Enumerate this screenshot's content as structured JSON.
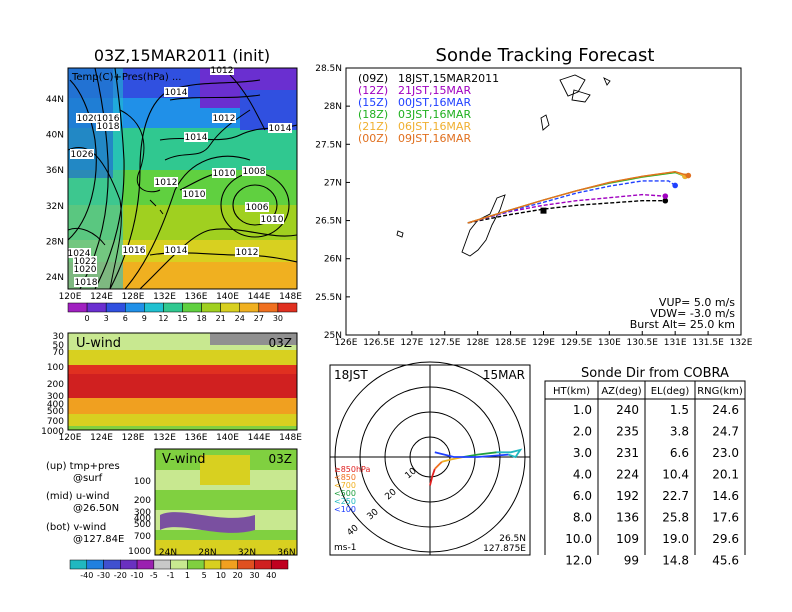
{
  "left_panel": {
    "title": "03Z,15MAR2011  (init)",
    "map_label": "Temp(C)+Pres(hPa) ...",
    "lat_ticks": [
      "44N",
      "40N",
      "36N",
      "32N",
      "28N",
      "24N"
    ],
    "lon_ticks": [
      "120E",
      "124E",
      "128E",
      "132E",
      "136E",
      "140E",
      "144E",
      "148E"
    ],
    "pressure_labels": [
      "1012",
      "1014",
      "1020",
      "1016",
      "1018",
      "1014",
      "1012",
      "1014",
      "1026",
      "1012",
      "1010",
      "1008",
      "1010",
      "1006",
      "1010",
      "1014",
      "1016",
      "1012",
      "1024",
      "1022",
      "1020",
      "1018"
    ],
    "temp_colorbar": {
      "labels": [
        "0",
        "3",
        "6",
        "9",
        "12",
        "15",
        "18",
        "21",
        "24",
        "27",
        "30"
      ],
      "colors": [
        "#a020c0",
        "#6a2fd0",
        "#3050e0",
        "#2090e8",
        "#20c0d0",
        "#30c890",
        "#60d040",
        "#a0d020",
        "#d8d020",
        "#f0b020",
        "#f07020",
        "#e03020"
      ]
    },
    "uwind": {
      "label": "U-wind",
      "time": "03Z",
      "y_ticks": [
        "30",
        "50",
        "70",
        "100",
        "200",
        "300",
        "400",
        "500",
        "700",
        "1000"
      ],
      "x_ticks": [
        "120E",
        "124E",
        "128E",
        "132E",
        "136E",
        "140E",
        "144E",
        "148E"
      ]
    },
    "vwind": {
      "label": "V-wind",
      "time": "03Z",
      "y_ticks": [
        "100",
        "200",
        "300",
        "400",
        "500",
        "700",
        "1000"
      ],
      "x_ticks": [
        "24N",
        "28N",
        "32N",
        "36N"
      ]
    },
    "notes": [
      "(up) tmp+pres",
      "@surf",
      "(mid) u-wind",
      "@26.50N",
      "(bot) v-wind",
      "@127.84E"
    ],
    "wind_colorbar": {
      "labels": [
        "-40",
        "-30",
        "-20",
        "-10",
        "-5",
        "-1",
        "1",
        "5",
        "10",
        "20",
        "30",
        "40"
      ],
      "colors": [
        "#20b8c0",
        "#2080e0",
        "#4050d0",
        "#6a30c0",
        "#9a20b0",
        "#c8c8c8",
        "#c8e890",
        "#80d040",
        "#d8d020",
        "#f0a020",
        "#e05020",
        "#d02020",
        "#c00020"
      ]
    }
  },
  "tracking": {
    "title": "Sonde Tracking Forecast",
    "lat_ticks": [
      "28.5N",
      "28N",
      "27.5N",
      "27N",
      "26.5N",
      "26N",
      "25.5N",
      "25N"
    ],
    "lon_ticks": [
      "126E",
      "126.5E",
      "127E",
      "127.5E",
      "128E",
      "128.5E",
      "129E",
      "129.5E",
      "130E",
      "130.5E",
      "131E",
      "131.5E",
      "132E"
    ],
    "legend": [
      {
        "code": "(09Z)",
        "label": "18JST,15MAR2011",
        "color": "#000000"
      },
      {
        "code": "(12Z)",
        "label": "21JST,15MAR",
        "color": "#a000c0"
      },
      {
        "code": "(15Z)",
        "label": "00JST,16MAR",
        "color": "#2040ff"
      },
      {
        "code": "(18Z)",
        "label": "03JST,16MAR",
        "color": "#20b020"
      },
      {
        "code": "(21Z)",
        "label": "06JST,16MAR",
        "color": "#f0b030"
      },
      {
        "code": "(00Z)",
        "label": "09JST,16MAR",
        "color": "#e07020"
      }
    ],
    "params": [
      "VUP=  5.0  m/s",
      "VDW=  -3.0  m/s",
      "Burst Alt=  25.0  km"
    ]
  },
  "polar": {
    "time_label": "18JST",
    "date_label": "15MAR",
    "ring_labels": [
      "10",
      "20",
      "30",
      "40"
    ],
    "pressure_legend": [
      {
        "label": "≥850hPa",
        "color": "#e02020"
      },
      {
        "label": "<850",
        "color": "#f07020"
      },
      {
        "label": "<700",
        "color": "#f0b020"
      },
      {
        "label": "<500",
        "color": "#20a040"
      },
      {
        "label": "<250",
        "color": "#20b8c0"
      },
      {
        "label": "<100",
        "color": "#2040ff"
      }
    ],
    "unit": "ms-1",
    "loc_lat": "26.5N",
    "loc_lon": "127.875E"
  },
  "sonde_table": {
    "title": "Sonde Dir from COBRA",
    "headers": [
      "HT(km)",
      "AZ(deg)",
      "EL(deg)",
      "RNG(km)"
    ],
    "rows": [
      [
        "1.0",
        "240",
        "1.5",
        "24.6"
      ],
      [
        "2.0",
        "235",
        "3.8",
        "24.7"
      ],
      [
        "3.0",
        "231",
        "6.6",
        "23.0"
      ],
      [
        "4.0",
        "224",
        "10.4",
        "20.1"
      ],
      [
        "6.0",
        "192",
        "22.7",
        "14.6"
      ],
      [
        "8.0",
        "136",
        "25.8",
        "17.6"
      ],
      [
        "10.0",
        "109",
        "19.0",
        "29.6"
      ],
      [
        "12.0",
        "99",
        "14.8",
        "45.6"
      ]
    ]
  },
  "chart_data": [
    {
      "type": "line",
      "title": "Sonde Tracking Forecast",
      "xlim": [
        126,
        132
      ],
      "ylim": [
        25,
        28.5
      ],
      "series": [
        {
          "name": "18JST,15MAR2011",
          "x": [
            127.85,
            128.5,
            129.0,
            129.5,
            130.0,
            130.5,
            130.85
          ],
          "y": [
            26.47,
            26.58,
            26.65,
            26.7,
            26.73,
            26.76,
            26.76
          ]
        },
        {
          "name": "21JST,15MAR",
          "x": [
            127.85,
            128.5,
            129.0,
            129.5,
            130.0,
            130.5,
            130.85
          ],
          "y": [
            26.47,
            26.62,
            26.7,
            26.76,
            26.8,
            26.84,
            26.82
          ]
        },
        {
          "name": "00JST,16MAR",
          "x": [
            127.85,
            128.5,
            129.0,
            129.5,
            130.0,
            130.5,
            130.9,
            131.0
          ],
          "y": [
            26.47,
            26.63,
            26.74,
            26.86,
            26.95,
            27.02,
            27.02,
            26.96
          ]
        },
        {
          "name": "03JST,16MAR",
          "x": [
            127.85,
            128.5,
            129.0,
            129.5,
            130.0,
            130.5,
            131.0,
            131.15
          ],
          "y": [
            26.47,
            26.64,
            26.77,
            26.89,
            26.99,
            27.07,
            27.13,
            27.08
          ]
        },
        {
          "name": "06JST,16MAR",
          "x": [
            127.85,
            128.5,
            129.0,
            129.5,
            130.0,
            130.5,
            131.0,
            131.15
          ],
          "y": [
            26.47,
            26.64,
            26.77,
            26.89,
            27.0,
            27.08,
            27.14,
            27.08
          ]
        },
        {
          "name": "09JST,16MAR",
          "x": [
            127.85,
            128.5,
            129.0,
            129.5,
            130.0,
            130.5,
            131.0,
            131.2
          ],
          "y": [
            26.47,
            26.64,
            26.77,
            26.89,
            27.0,
            27.08,
            27.14,
            27.09
          ]
        }
      ]
    },
    {
      "type": "line",
      "title": "",
      "xlim": [
        -40,
        40
      ],
      "ylim": [
        -40,
        40
      ],
      "series": [
        {
          "name": "≥850hPa",
          "x": [
            0,
            1,
            2
          ],
          "y": [
            -12,
            -8,
            -5
          ]
        },
        {
          "name": "<850",
          "x": [
            2,
            4,
            5
          ],
          "y": [
            -5,
            -3,
            -2
          ]
        },
        {
          "name": "<700",
          "x": [
            5,
            9,
            14
          ],
          "y": [
            -2,
            -1,
            0
          ]
        },
        {
          "name": "<500",
          "x": [
            14,
            20,
            28
          ],
          "y": [
            0,
            1,
            2
          ]
        },
        {
          "name": "<250",
          "x": [
            28,
            34,
            38,
            36,
            33
          ],
          "y": [
            2,
            2,
            3,
            0,
            1
          ]
        },
        {
          "name": "<100",
          "x": [
            33,
            20,
            10,
            2
          ],
          "y": [
            1,
            0,
            0,
            2
          ]
        }
      ]
    }
  ]
}
